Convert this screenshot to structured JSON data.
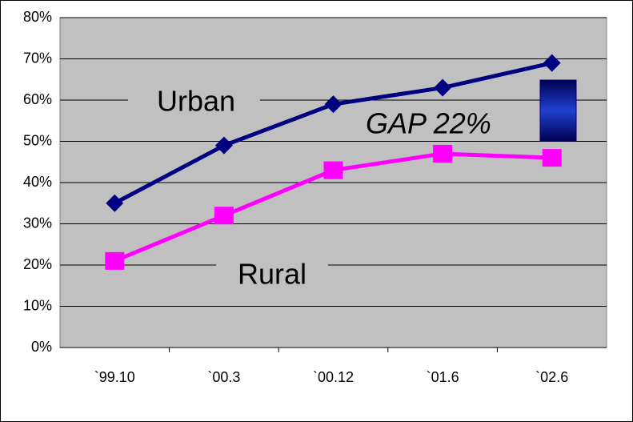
{
  "chart_data": {
    "type": "line",
    "categories": [
      "`99.10",
      "`00.3",
      "`00.12",
      "`01.6",
      "`02.6"
    ],
    "series": [
      {
        "name": "Urban",
        "color": "#000080",
        "marker": "diamond",
        "values": [
          35,
          49,
          59,
          63,
          69
        ]
      },
      {
        "name": "Rural",
        "color": "#ff00ff",
        "marker": "square",
        "values": [
          21,
          32,
          43,
          47,
          46
        ]
      }
    ],
    "annotation": "GAP 22%",
    "ylim": [
      0,
      80
    ],
    "yticks": [
      {
        "value": 0,
        "label": "0%"
      },
      {
        "value": 10,
        "label": "10%"
      },
      {
        "value": 20,
        "label": "20%"
      },
      {
        "value": 30,
        "label": "30%"
      },
      {
        "value": 40,
        "label": "40%"
      },
      {
        "value": 50,
        "label": "50%"
      },
      {
        "value": 60,
        "label": "60%"
      },
      {
        "value": 70,
        "label": "70%"
      },
      {
        "value": 80,
        "label": "80%"
      }
    ],
    "grid": true,
    "plot_background": "#c0c0c0"
  }
}
